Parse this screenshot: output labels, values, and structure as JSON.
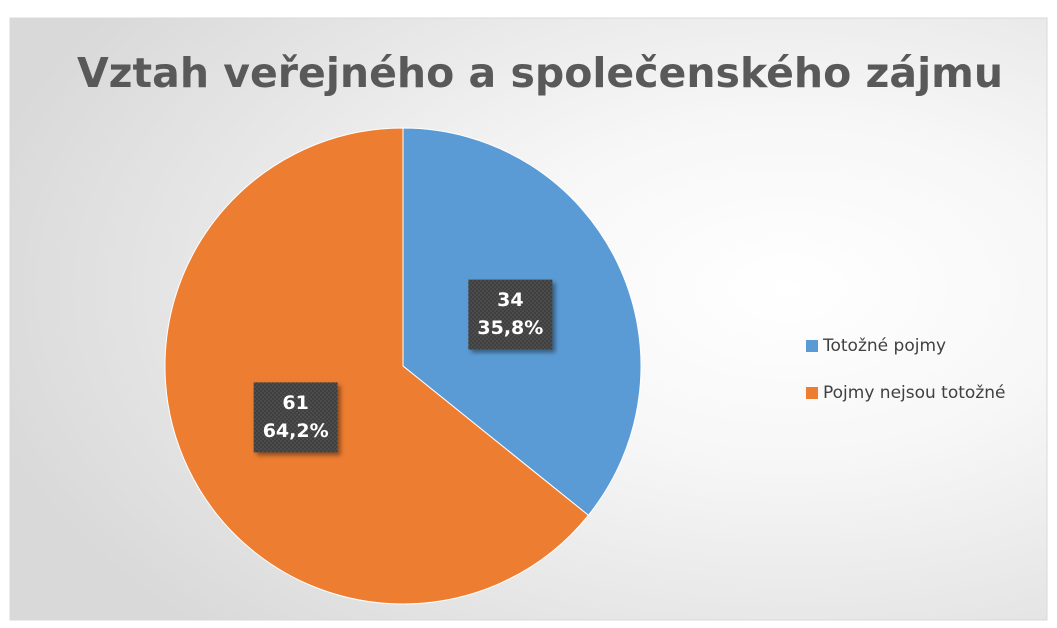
{
  "chart_data": {
    "type": "pie",
    "title": "Vztah veřejného a společenského zájmu",
    "categories": [
      "Totožné pojmy",
      "Pojmy nejsou totožné"
    ],
    "values": [
      34,
      61
    ],
    "percentages": [
      35.8,
      64.2
    ],
    "percentage_labels": [
      "35,8%",
      "64,2%"
    ],
    "colors": [
      "#5b9bd5",
      "#ed7d31"
    ],
    "legend": "right"
  }
}
